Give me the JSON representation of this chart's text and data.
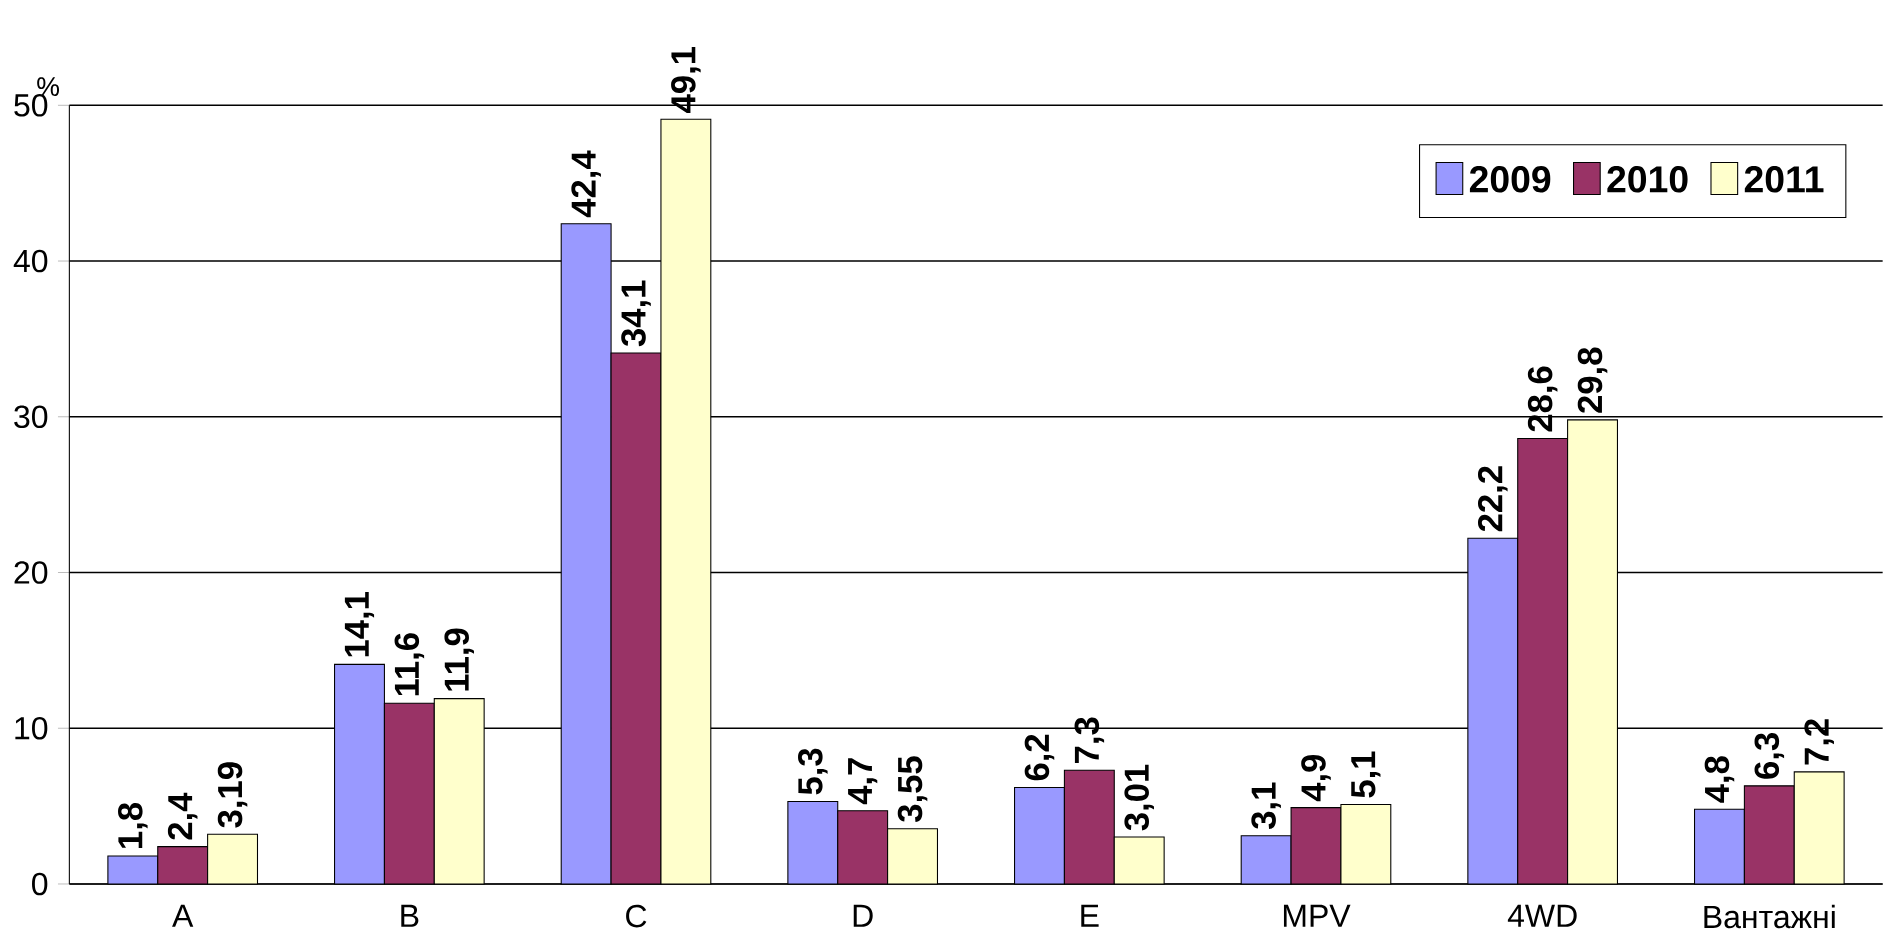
{
  "chart_data": {
    "type": "bar",
    "ylabel": "%",
    "categories": [
      "A",
      "B",
      "C",
      "D",
      "E",
      "MPV",
      "4WD",
      "Вантажні"
    ],
    "series": [
      {
        "name": "2009",
        "color": "#9999ff",
        "values": [
          1.8,
          14.1,
          42.4,
          5.3,
          6.2,
          3.1,
          22.2,
          4.8
        ],
        "value_labels": [
          "1,8",
          "14,1",
          "42,4",
          "5,3",
          "6,2",
          "3,1",
          "22,2",
          "4,8"
        ]
      },
      {
        "name": "2010",
        "color": "#993366",
        "values": [
          2.4,
          11.6,
          34.1,
          4.7,
          7.3,
          4.9,
          28.6,
          6.3
        ],
        "value_labels": [
          "2,4",
          "11,6",
          "34,1",
          "4,7",
          "7,3",
          "4,9",
          "28,6",
          "6,3"
        ]
      },
      {
        "name": "2011",
        "color": "#ffffcc",
        "values": [
          3.19,
          11.9,
          49.1,
          3.55,
          3.01,
          5.1,
          29.8,
          7.2
        ],
        "value_labels": [
          "3,19",
          "11,9",
          "49,1",
          "3,55",
          "3,01",
          "5,1",
          "29,8",
          "7,2"
        ]
      }
    ],
    "ylim": [
      0,
      50
    ],
    "yticks": [
      0,
      10,
      20,
      30,
      40,
      50
    ],
    "grid": "y",
    "legend": "top right"
  }
}
